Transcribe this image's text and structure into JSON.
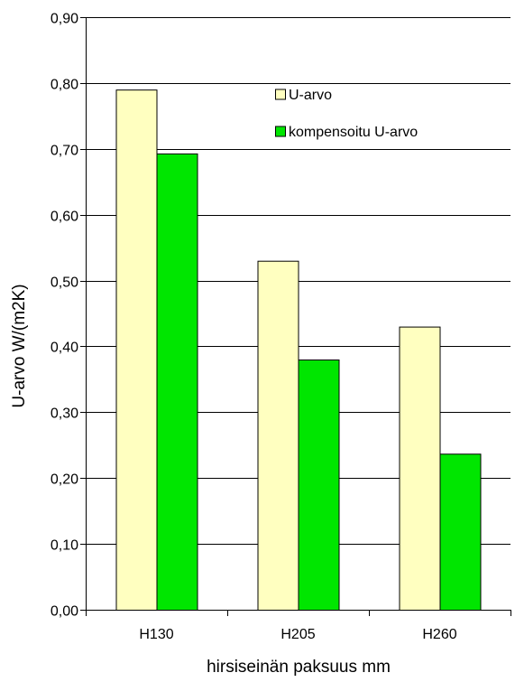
{
  "chart_data": {
    "type": "bar",
    "title": "",
    "xlabel": "hirsiseinän paksuus mm",
    "ylabel": "U-arvo W/(m2K)",
    "categories": [
      "H130",
      "H205",
      "H260"
    ],
    "series": [
      {
        "name": "U-arvo",
        "color": "#ffffc0",
        "values": [
          0.79,
          0.53,
          0.43
        ]
      },
      {
        "name": "kompensoitu U-arvo",
        "color": "#00e600",
        "values": [
          0.693,
          0.38,
          0.237
        ]
      }
    ],
    "ylim": [
      0,
      0.9
    ],
    "yticks": [
      0,
      0.1,
      0.2,
      0.3,
      0.4,
      0.5,
      0.6,
      0.7,
      0.8,
      0.9
    ],
    "ytick_labels": [
      "0,00",
      "0,10",
      "0,20",
      "0,30",
      "0,40",
      "0,50",
      "0,60",
      "0,70",
      "0,80",
      "0,90"
    ],
    "grid": true,
    "legend_position": "top-right, inside plot"
  }
}
